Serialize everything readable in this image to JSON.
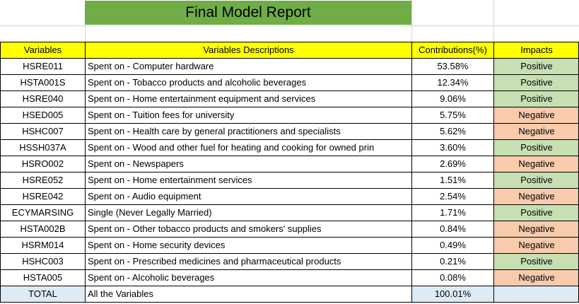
{
  "title": "Final Model Report",
  "headers": {
    "variable": "Variables",
    "description": "Variables Descriptions",
    "contribution": "Contributions(%)",
    "impact": "Impacts"
  },
  "rows": [
    {
      "variable": "HSRE011",
      "description": "Spent on - Computer hardware",
      "contribution": "53.58%",
      "impact": "Positive"
    },
    {
      "variable": "HSTA001S",
      "description": "Spent on - Tobacco products and alcoholic beverages",
      "contribution": "12.34%",
      "impact": "Positive"
    },
    {
      "variable": "HSRE040",
      "description": "Spent on - Home entertainment equipment and services",
      "contribution": "9.06%",
      "impact": "Positive"
    },
    {
      "variable": "HSED005",
      "description": "Spent on - Tuition fees for university",
      "contribution": "5.75%",
      "impact": "Negative"
    },
    {
      "variable": "HSHC007",
      "description": "Spent on - Health care by general practitioners and specialists",
      "contribution": "5.62%",
      "impact": "Negative"
    },
    {
      "variable": "HSSH037A",
      "description": "Spent on - Wood and other fuel for heating and cooking for owned prin",
      "contribution": "3.60%",
      "impact": "Positive"
    },
    {
      "variable": "HSRO002",
      "description": "Spent on - Newspapers",
      "contribution": "2.69%",
      "impact": "Negative"
    },
    {
      "variable": "HSRE052",
      "description": "Spent on - Home entertainment services",
      "contribution": "1.51%",
      "impact": "Positive"
    },
    {
      "variable": "HSRE042",
      "description": "Spent on - Audio equipment",
      "contribution": "2.54%",
      "impact": "Negative"
    },
    {
      "variable": "ECYMARSING",
      "description": "Single (Never Legally Married)",
      "contribution": "1.71%",
      "impact": "Positive"
    },
    {
      "variable": "HSTA002B",
      "description": "Spent on - Other tobacco products and smokers' supplies",
      "contribution": "0.84%",
      "impact": "Negative"
    },
    {
      "variable": "HSRM014",
      "description": "Spent on - Home security devices",
      "contribution": "0.49%",
      "impact": "Negative"
    },
    {
      "variable": "HSHC003",
      "description": "Spent on - Prescribed medicines and pharmaceutical products",
      "contribution": "0.21%",
      "impact": "Positive"
    },
    {
      "variable": "HSTA005",
      "description": "Spent on - Alcoholic beverages",
      "contribution": "0.08%",
      "impact": "Negative"
    }
  ],
  "total": {
    "variable": "TOTAL",
    "description": "All the Variables",
    "contribution": "100.01%",
    "impact": ""
  },
  "colors": {
    "title_bg": "#70ad47",
    "header_bg": "#ffff00",
    "positive_bg": "#c6e0b4",
    "negative_bg": "#f8cbad",
    "total_bg": "#ddebf7"
  }
}
